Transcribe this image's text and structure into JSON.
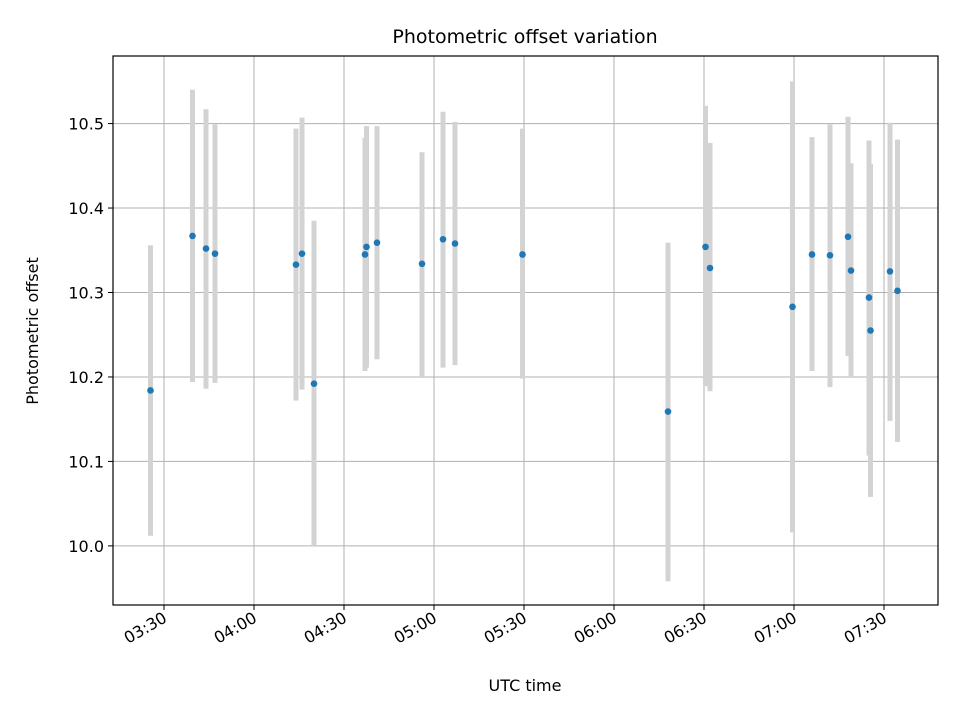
{
  "chart_data": {
    "type": "scatter",
    "title": "Photometric offset variation",
    "xlabel": "UTC time",
    "ylabel": "Photometric offset",
    "x_ticks": [
      "03:30",
      "04:00",
      "04:30",
      "05:00",
      "05:30",
      "06:00",
      "06:30",
      "07:00",
      "07:30"
    ],
    "y_ticks": [
      "10.0",
      "10.1",
      "10.2",
      "10.3",
      "10.4",
      "10.5"
    ],
    "xlim": [
      "03:13",
      "07:48"
    ],
    "ylim": [
      9.93,
      10.58
    ],
    "grid": true,
    "colors": {
      "point": "#1f77b4",
      "errorbar": "#d3d3d3",
      "grid": "#b0b0b0"
    },
    "points": [
      {
        "x": "03:25:30",
        "y": 10.184,
        "low": 10.012,
        "high": 10.356
      },
      {
        "x": "03:39:30",
        "y": 10.367,
        "low": 10.194,
        "high": 10.54
      },
      {
        "x": "03:44:00",
        "y": 10.352,
        "low": 10.186,
        "high": 10.517
      },
      {
        "x": "03:47:00",
        "y": 10.346,
        "low": 10.193,
        "high": 10.499
      },
      {
        "x": "04:14:00",
        "y": 10.333,
        "low": 10.172,
        "high": 10.494
      },
      {
        "x": "04:16:00",
        "y": 10.346,
        "low": 10.185,
        "high": 10.507
      },
      {
        "x": "04:20:00",
        "y": 10.192,
        "low": 10.0,
        "high": 10.385
      },
      {
        "x": "04:37:00",
        "y": 10.345,
        "low": 10.207,
        "high": 10.483
      },
      {
        "x": "04:37:30",
        "y": 10.354,
        "low": 10.211,
        "high": 10.497
      },
      {
        "x": "04:41:00",
        "y": 10.359,
        "low": 10.221,
        "high": 10.497
      },
      {
        "x": "04:56:00",
        "y": 10.334,
        "low": 10.201,
        "high": 10.466
      },
      {
        "x": "05:03:00",
        "y": 10.363,
        "low": 10.211,
        "high": 10.514
      },
      {
        "x": "05:07:00",
        "y": 10.358,
        "low": 10.214,
        "high": 10.502
      },
      {
        "x": "05:29:30",
        "y": 10.345,
        "low": 10.198,
        "high": 10.494
      },
      {
        "x": "06:18:00",
        "y": 10.159,
        "low": 9.958,
        "high": 10.359
      },
      {
        "x": "06:30:30",
        "y": 10.354,
        "low": 10.189,
        "high": 10.521
      },
      {
        "x": "06:32:00",
        "y": 10.329,
        "low": 10.183,
        "high": 10.477
      },
      {
        "x": "06:59:30",
        "y": 10.283,
        "low": 10.016,
        "high": 10.55
      },
      {
        "x": "07:06:00",
        "y": 10.345,
        "low": 10.207,
        "high": 10.484
      },
      {
        "x": "07:12:00",
        "y": 10.344,
        "low": 10.188,
        "high": 10.499
      },
      {
        "x": "07:18:00",
        "y": 10.366,
        "low": 10.225,
        "high": 10.508
      },
      {
        "x": "07:19:00",
        "y": 10.326,
        "low": 10.2,
        "high": 10.453
      },
      {
        "x": "07:25:00",
        "y": 10.294,
        "low": 10.107,
        "high": 10.48
      },
      {
        "x": "07:25:30",
        "y": 10.255,
        "low": 10.058,
        "high": 10.452
      },
      {
        "x": "07:32:00",
        "y": 10.325,
        "low": 10.148,
        "high": 10.501
      },
      {
        "x": "07:34:30",
        "y": 10.302,
        "low": 10.123,
        "high": 10.481
      }
    ]
  }
}
